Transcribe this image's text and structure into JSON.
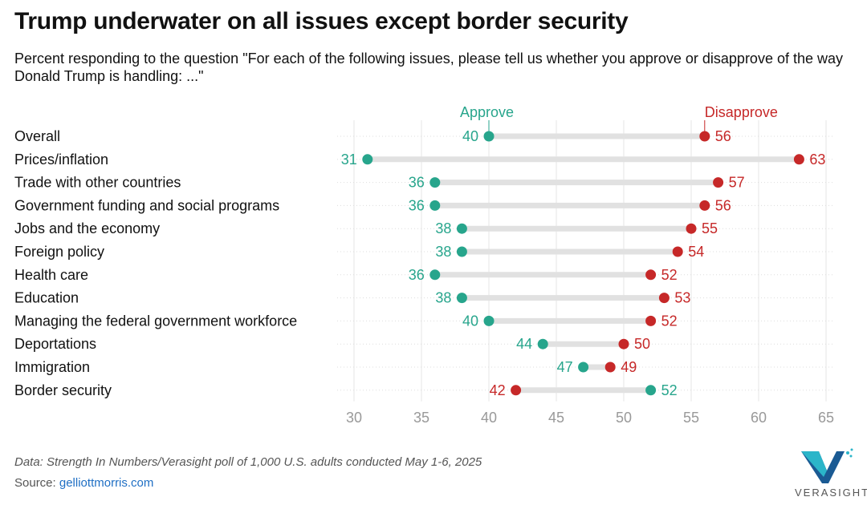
{
  "title": "Trump underwater on all issues except border security",
  "subtitle": "Percent responding to the question \"For each of the following issues, please tell us whether you approve or disapprove of the way Donald Trump is handling: ...\"",
  "footer": {
    "note": "Data: Strength In Numbers/Verasight poll of 1,000 U.S. adults conducted May 1-6, 2025",
    "source_label": "Source: ",
    "source_link": "gelliottmorris.com"
  },
  "logo": {
    "text": "VERASIGHT",
    "colors": [
      "#2bb5c9",
      "#1a5a93"
    ]
  },
  "colors": {
    "approve": "#27a58c",
    "disapprove": "#c62828",
    "connector": "#e1e1e1",
    "grid": "#e6e6e6",
    "tick": "#999999"
  },
  "chart_data": {
    "type": "dot-plot",
    "xlim": [
      30,
      65
    ],
    "xticks": [
      30,
      35,
      40,
      45,
      50,
      55,
      60,
      65
    ],
    "series": [
      {
        "name": "Approve",
        "color": "#27a58c"
      },
      {
        "name": "Disapprove",
        "color": "#c62828"
      }
    ],
    "categories": [
      "Overall",
      "Prices/inflation",
      "Trade with other countries",
      "Government funding and social programs",
      "Jobs and the economy",
      "Foreign policy",
      "Health care",
      "Education",
      "Managing the federal government workforce",
      "Deportations",
      "Immigration",
      "Border security"
    ],
    "approve": [
      40,
      31,
      36,
      36,
      38,
      38,
      36,
      38,
      40,
      44,
      47,
      52
    ],
    "disapprove": [
      56,
      63,
      57,
      56,
      55,
      54,
      52,
      53,
      52,
      50,
      49,
      42
    ],
    "grid": true
  }
}
